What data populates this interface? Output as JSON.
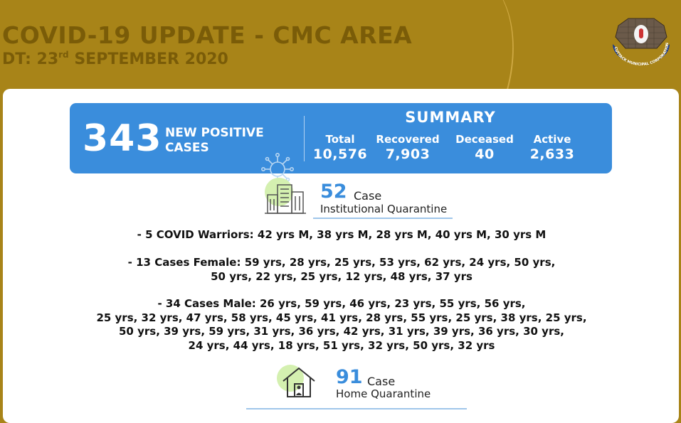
{
  "header": {
    "title": "COVID-19 UPDATE - CMC AREA",
    "date_prefix": "DT: 23",
    "date_suffix": "rd",
    "date_rest": " SEPTEMBER 2020",
    "logo_text": "CUTTACK MUNICIPAL CORPORATION"
  },
  "summary": {
    "new_cases": "343",
    "new_label_line1": "NEW POSITIVE",
    "new_label_line2": "CASES",
    "title": "SUMMARY",
    "total_label": "Total",
    "total_value": "10,576",
    "recovered_label": "Recovered",
    "recovered_value": "7,903",
    "deceased_label": "Deceased",
    "deceased_value": "40",
    "active_label": "Active",
    "active_value": "2,633"
  },
  "institutional": {
    "count": "52",
    "case_word": "Case",
    "label": "Institutional Quarantine"
  },
  "details": {
    "warriors": "-   5 COVID Warriors: 42 yrs M, 38 yrs M, 28 yrs M, 40 yrs M, 30 yrs M",
    "female_line1": "-   13 Cases Female: 59 yrs, 28 yrs, 25 yrs, 53 yrs, 62 yrs, 24 yrs, 50 yrs,",
    "female_line2": "50 yrs, 22 yrs, 25 yrs, 12 yrs, 48 yrs, 37 yrs",
    "male_line1": "-   34 Cases Male: 26 yrs, 59 yrs, 46 yrs, 23 yrs, 55 yrs, 56 yrs,",
    "male_line2": "25 yrs, 32 yrs, 47 yrs, 58 yrs, 45 yrs, 41 yrs, 28 yrs, 55 yrs, 25 yrs, 38 yrs, 25 yrs,",
    "male_line3": "50 yrs, 39 yrs, 59 yrs, 31 yrs, 36 yrs, 42 yrs, 31 yrs, 39 yrs, 36 yrs, 30 yrs,",
    "male_line4": "24 yrs, 44 yrs, 18 yrs, 51 yrs, 32 yrs, 50 yrs, 32 yrs"
  },
  "home": {
    "count": "91",
    "case_word": "Case",
    "label": "Home Quarantine"
  },
  "colors": {
    "header_bg": "#a88418",
    "header_text": "#7a5c08",
    "banner_blue": "#3a8ddc",
    "icon_green": "#d4f0b0"
  }
}
